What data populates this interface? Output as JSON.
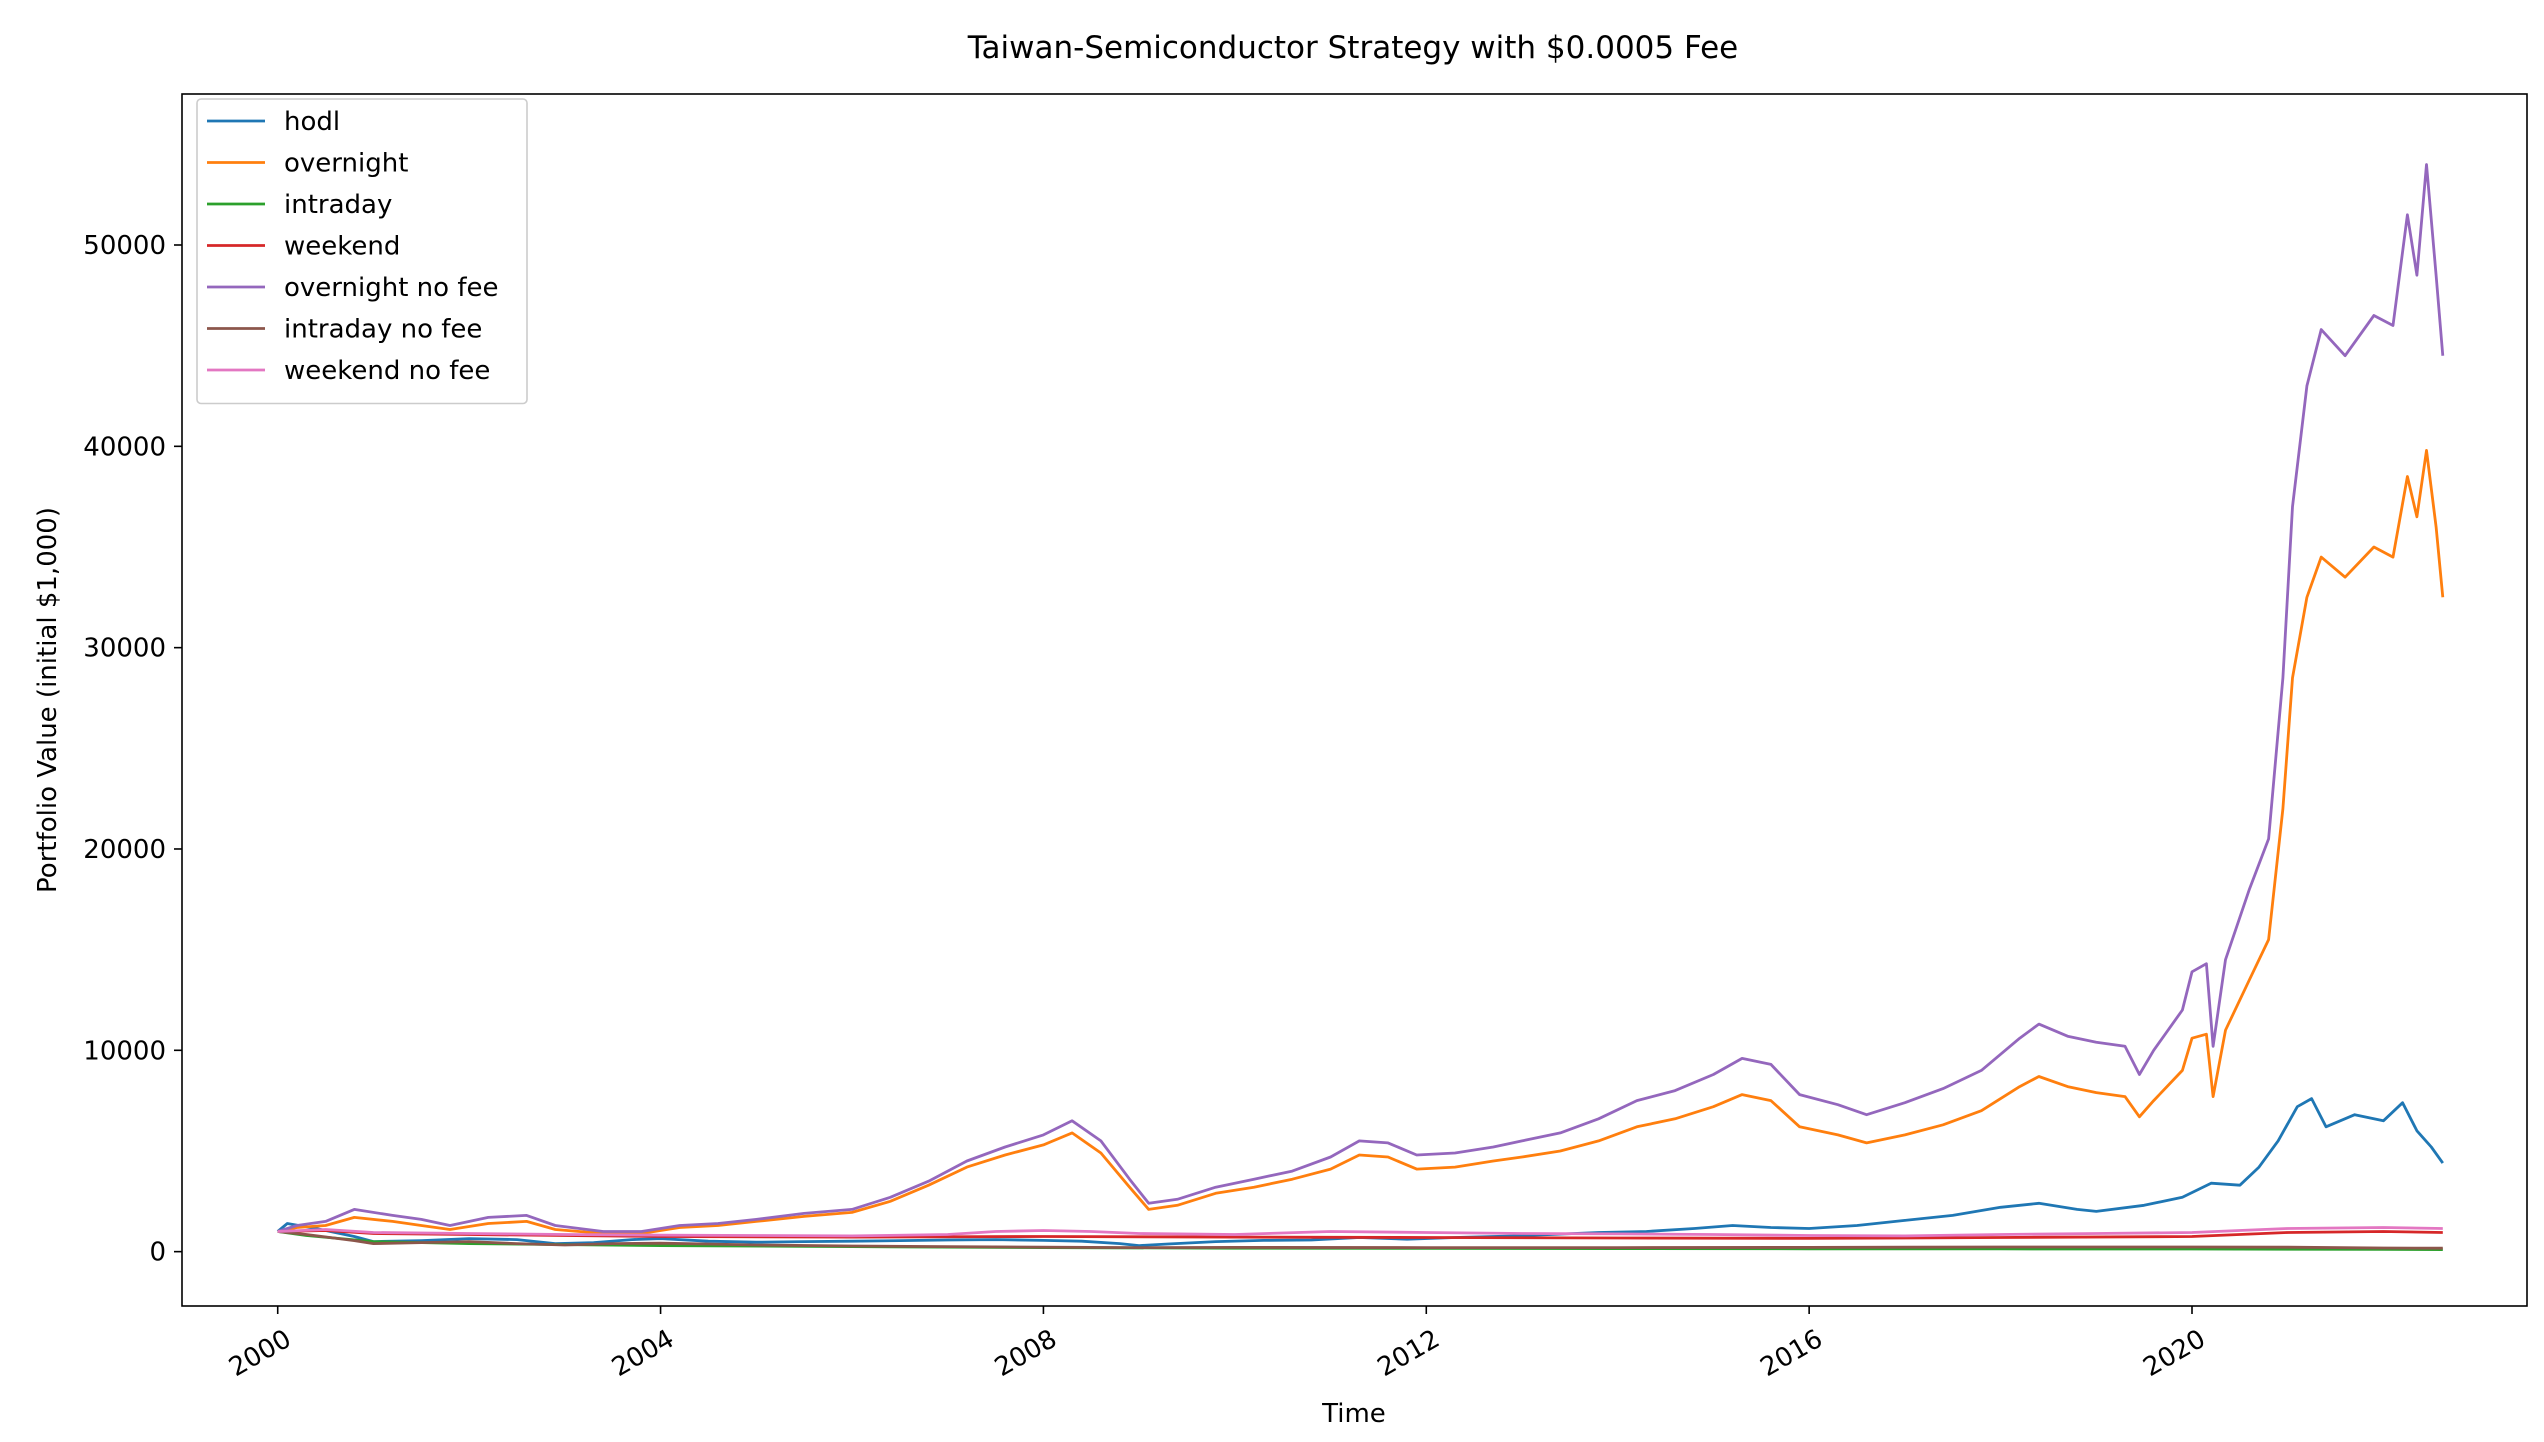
{
  "chart_data": {
    "type": "line",
    "title": "Taiwan-Semiconductor Strategy with $0.0005 Fee",
    "xlabel": "Time",
    "ylabel": "Portfolio Value (initial $1,000)",
    "xlim": [
      1999.0,
      2023.5
    ],
    "ylim": [
      -2700,
      57500
    ],
    "x_ticks": [
      2000,
      2004,
      2008,
      2012,
      2016,
      2020
    ],
    "x_tick_labels": [
      "2000",
      "2004",
      "2008",
      "2012",
      "2016",
      "2020"
    ],
    "y_ticks": [
      0,
      10000,
      20000,
      30000,
      40000,
      50000
    ],
    "y_tick_labels": [
      "0",
      "10000",
      "20000",
      "30000",
      "40000",
      "50000"
    ],
    "grid": false,
    "legend_position": "top-left",
    "series": [
      {
        "name": "hodl",
        "color": "#1f77b4",
        "points": [
          [
            2000.0,
            1000
          ],
          [
            2000.1,
            1400
          ],
          [
            2000.4,
            1150
          ],
          [
            2000.8,
            750
          ],
          [
            2001.0,
            500
          ],
          [
            2001.5,
            550
          ],
          [
            2002.0,
            650
          ],
          [
            2002.5,
            600
          ],
          [
            2002.9,
            400
          ],
          [
            2003.3,
            450
          ],
          [
            2003.7,
            600
          ],
          [
            2004.0,
            650
          ],
          [
            2004.5,
            520
          ],
          [
            2005.0,
            470
          ],
          [
            2005.5,
            500
          ],
          [
            2006.0,
            520
          ],
          [
            2006.5,
            550
          ],
          [
            2007.0,
            580
          ],
          [
            2007.5,
            600
          ],
          [
            2008.0,
            560
          ],
          [
            2008.4,
            520
          ],
          [
            2008.8,
            400
          ],
          [
            2009.0,
            300
          ],
          [
            2009.3,
            380
          ],
          [
            2009.8,
            500
          ],
          [
            2010.3,
            560
          ],
          [
            2010.8,
            580
          ],
          [
            2011.3,
            700
          ],
          [
            2011.8,
            620
          ],
          [
            2012.3,
            700
          ],
          [
            2012.8,
            760
          ],
          [
            2013.3,
            850
          ],
          [
            2013.8,
            950
          ],
          [
            2014.3,
            1000
          ],
          [
            2014.8,
            1150
          ],
          [
            2015.2,
            1300
          ],
          [
            2015.6,
            1200
          ],
          [
            2016.0,
            1150
          ],
          [
            2016.5,
            1300
          ],
          [
            2017.0,
            1550
          ],
          [
            2017.5,
            1800
          ],
          [
            2018.0,
            2200
          ],
          [
            2018.4,
            2400
          ],
          [
            2018.8,
            2100
          ],
          [
            2019.0,
            2000
          ],
          [
            2019.5,
            2300
          ],
          [
            2019.9,
            2700
          ],
          [
            2020.2,
            3400
          ],
          [
            2020.5,
            3300
          ],
          [
            2020.7,
            4200
          ],
          [
            2020.9,
            5500
          ],
          [
            2021.1,
            7200
          ],
          [
            2021.25,
            7600
          ],
          [
            2021.4,
            6200
          ],
          [
            2021.7,
            6800
          ],
          [
            2022.0,
            6500
          ],
          [
            2022.2,
            7400
          ],
          [
            2022.35,
            6000
          ],
          [
            2022.5,
            5200
          ],
          [
            2022.62,
            4400
          ]
        ]
      },
      {
        "name": "overnight",
        "color": "#ff7f0e",
        "points": [
          [
            2000.0,
            1000
          ],
          [
            2000.2,
            1200
          ],
          [
            2000.5,
            1300
          ],
          [
            2000.8,
            1700
          ],
          [
            2001.2,
            1500
          ],
          [
            2001.5,
            1300
          ],
          [
            2001.8,
            1100
          ],
          [
            2002.2,
            1400
          ],
          [
            2002.6,
            1500
          ],
          [
            2002.9,
            1100
          ],
          [
            2003.4,
            900
          ],
          [
            2003.8,
            900
          ],
          [
            2004.2,
            1200
          ],
          [
            2004.6,
            1300
          ],
          [
            2005.0,
            1500
          ],
          [
            2005.5,
            1750
          ],
          [
            2006.0,
            1950
          ],
          [
            2006.4,
            2500
          ],
          [
            2006.8,
            3300
          ],
          [
            2007.2,
            4200
          ],
          [
            2007.6,
            4800
          ],
          [
            2008.0,
            5300
          ],
          [
            2008.3,
            5900
          ],
          [
            2008.6,
            4900
          ],
          [
            2008.9,
            3200
          ],
          [
            2009.1,
            2100
          ],
          [
            2009.4,
            2300
          ],
          [
            2009.8,
            2900
          ],
          [
            2010.2,
            3200
          ],
          [
            2010.6,
            3600
          ],
          [
            2011.0,
            4100
          ],
          [
            2011.3,
            4800
          ],
          [
            2011.6,
            4700
          ],
          [
            2011.9,
            4100
          ],
          [
            2012.3,
            4200
          ],
          [
            2012.7,
            4500
          ],
          [
            2013.0,
            4700
          ],
          [
            2013.4,
            5000
          ],
          [
            2013.8,
            5500
          ],
          [
            2014.2,
            6200
          ],
          [
            2014.6,
            6600
          ],
          [
            2015.0,
            7200
          ],
          [
            2015.3,
            7800
          ],
          [
            2015.6,
            7500
          ],
          [
            2015.9,
            6200
          ],
          [
            2016.3,
            5800
          ],
          [
            2016.6,
            5400
          ],
          [
            2017.0,
            5800
          ],
          [
            2017.4,
            6300
          ],
          [
            2017.8,
            7000
          ],
          [
            2018.2,
            8200
          ],
          [
            2018.4,
            8700
          ],
          [
            2018.7,
            8200
          ],
          [
            2019.0,
            7900
          ],
          [
            2019.3,
            7700
          ],
          [
            2019.45,
            6700
          ],
          [
            2019.6,
            7500
          ],
          [
            2019.9,
            9000
          ],
          [
            2020.0,
            10600
          ],
          [
            2020.15,
            10800
          ],
          [
            2020.22,
            7700
          ],
          [
            2020.35,
            11000
          ],
          [
            2020.6,
            13500
          ],
          [
            2020.8,
            15500
          ],
          [
            2020.95,
            22000
          ],
          [
            2021.05,
            28500
          ],
          [
            2021.2,
            32500
          ],
          [
            2021.35,
            34500
          ],
          [
            2021.6,
            33500
          ],
          [
            2021.9,
            35000
          ],
          [
            2022.1,
            34500
          ],
          [
            2022.25,
            38500
          ],
          [
            2022.35,
            36500
          ],
          [
            2022.45,
            39800
          ],
          [
            2022.55,
            36000
          ],
          [
            2022.62,
            32500
          ]
        ]
      },
      {
        "name": "intraday",
        "color": "#2ca02c",
        "points": [
          [
            2000.0,
            1000
          ],
          [
            2000.3,
            800
          ],
          [
            2001.0,
            500
          ],
          [
            2002.0,
            400
          ],
          [
            2003.0,
            350
          ],
          [
            2004.0,
            300
          ],
          [
            2006.0,
            250
          ],
          [
            2008.0,
            200
          ],
          [
            2010.0,
            170
          ],
          [
            2012.0,
            160
          ],
          [
            2014.0,
            150
          ],
          [
            2016.0,
            140
          ],
          [
            2018.0,
            135
          ],
          [
            2020.0,
            130
          ],
          [
            2022.0,
            110
          ],
          [
            2022.62,
            100
          ]
        ]
      },
      {
        "name": "weekend",
        "color": "#d62728",
        "points": [
          [
            2000.0,
            1000
          ],
          [
            2000.5,
            1050
          ],
          [
            2001.0,
            900
          ],
          [
            2002.0,
            850
          ],
          [
            2003.0,
            800
          ],
          [
            2004.0,
            750
          ],
          [
            2006.0,
            720
          ],
          [
            2008.0,
            750
          ],
          [
            2010.0,
            720
          ],
          [
            2012.0,
            700
          ],
          [
            2014.0,
            680
          ],
          [
            2016.0,
            660
          ],
          [
            2018.0,
            700
          ],
          [
            2020.0,
            750
          ],
          [
            2021.0,
            950
          ],
          [
            2022.0,
            1000
          ],
          [
            2022.62,
            950
          ]
        ]
      },
      {
        "name": "overnight no fee",
        "color": "#9467bd",
        "points": [
          [
            2000.0,
            1000
          ],
          [
            2000.2,
            1300
          ],
          [
            2000.5,
            1500
          ],
          [
            2000.8,
            2100
          ],
          [
            2001.2,
            1800
          ],
          [
            2001.5,
            1600
          ],
          [
            2001.8,
            1300
          ],
          [
            2002.2,
            1700
          ],
          [
            2002.6,
            1800
          ],
          [
            2002.9,
            1300
          ],
          [
            2003.4,
            1000
          ],
          [
            2003.8,
            1000
          ],
          [
            2004.2,
            1300
          ],
          [
            2004.6,
            1400
          ],
          [
            2005.0,
            1600
          ],
          [
            2005.5,
            1900
          ],
          [
            2006.0,
            2100
          ],
          [
            2006.4,
            2700
          ],
          [
            2006.8,
            3500
          ],
          [
            2007.2,
            4500
          ],
          [
            2007.6,
            5200
          ],
          [
            2008.0,
            5800
          ],
          [
            2008.3,
            6500
          ],
          [
            2008.6,
            5500
          ],
          [
            2008.9,
            3600
          ],
          [
            2009.1,
            2400
          ],
          [
            2009.4,
            2600
          ],
          [
            2009.8,
            3200
          ],
          [
            2010.2,
            3600
          ],
          [
            2010.6,
            4000
          ],
          [
            2011.0,
            4700
          ],
          [
            2011.3,
            5500
          ],
          [
            2011.6,
            5400
          ],
          [
            2011.9,
            4800
          ],
          [
            2012.3,
            4900
          ],
          [
            2012.7,
            5200
          ],
          [
            2013.0,
            5500
          ],
          [
            2013.4,
            5900
          ],
          [
            2013.8,
            6600
          ],
          [
            2014.2,
            7500
          ],
          [
            2014.6,
            8000
          ],
          [
            2015.0,
            8800
          ],
          [
            2015.3,
            9600
          ],
          [
            2015.6,
            9300
          ],
          [
            2015.9,
            7800
          ],
          [
            2016.3,
            7300
          ],
          [
            2016.6,
            6800
          ],
          [
            2017.0,
            7400
          ],
          [
            2017.4,
            8100
          ],
          [
            2017.8,
            9000
          ],
          [
            2018.2,
            10600
          ],
          [
            2018.4,
            11300
          ],
          [
            2018.7,
            10700
          ],
          [
            2019.0,
            10400
          ],
          [
            2019.3,
            10200
          ],
          [
            2019.45,
            8800
          ],
          [
            2019.6,
            10000
          ],
          [
            2019.9,
            12000
          ],
          [
            2020.0,
            13900
          ],
          [
            2020.15,
            14300
          ],
          [
            2020.22,
            10200
          ],
          [
            2020.35,
            14500
          ],
          [
            2020.6,
            18000
          ],
          [
            2020.8,
            20500
          ],
          [
            2020.95,
            28500
          ],
          [
            2021.05,
            37000
          ],
          [
            2021.2,
            43000
          ],
          [
            2021.35,
            45800
          ],
          [
            2021.6,
            44500
          ],
          [
            2021.9,
            46500
          ],
          [
            2022.1,
            46000
          ],
          [
            2022.25,
            51500
          ],
          [
            2022.35,
            48500
          ],
          [
            2022.45,
            54000
          ],
          [
            2022.55,
            48500
          ],
          [
            2022.62,
            44500
          ]
        ]
      },
      {
        "name": "intraday no fee",
        "color": "#8c564b",
        "points": [
          [
            2000.0,
            1000
          ],
          [
            2000.3,
            850
          ],
          [
            2000.8,
            550
          ],
          [
            2001.0,
            400
          ],
          [
            2001.5,
            450
          ],
          [
            2002.0,
            500
          ],
          [
            2002.5,
            400
          ],
          [
            2003.0,
            330
          ],
          [
            2003.5,
            400
          ],
          [
            2004.0,
            420
          ],
          [
            2004.5,
            380
          ],
          [
            2005.0,
            330
          ],
          [
            2006.0,
            280
          ],
          [
            2007.0,
            250
          ],
          [
            2008.0,
            220
          ],
          [
            2009.0,
            200
          ],
          [
            2010.0,
            210
          ],
          [
            2012.0,
            200
          ],
          [
            2014.0,
            200
          ],
          [
            2016.0,
            210
          ],
          [
            2018.0,
            230
          ],
          [
            2020.0,
            230
          ],
          [
            2021.0,
            220
          ],
          [
            2022.0,
            180
          ],
          [
            2022.62,
            170
          ]
        ]
      },
      {
        "name": "weekend no fee",
        "color": "#e377c2",
        "points": [
          [
            2000.0,
            1000
          ],
          [
            2000.5,
            1100
          ],
          [
            2001.0,
            950
          ],
          [
            2002.0,
            900
          ],
          [
            2003.0,
            850
          ],
          [
            2004.0,
            820
          ],
          [
            2005.0,
            800
          ],
          [
            2006.0,
            780
          ],
          [
            2007.0,
            850
          ],
          [
            2007.5,
            1000
          ],
          [
            2008.0,
            1050
          ],
          [
            2008.5,
            1000
          ],
          [
            2009.0,
            900
          ],
          [
            2010.0,
            850
          ],
          [
            2011.0,
            1000
          ],
          [
            2012.0,
            950
          ],
          [
            2013.0,
            900
          ],
          [
            2014.0,
            880
          ],
          [
            2015.0,
            850
          ],
          [
            2016.0,
            800
          ],
          [
            2017.0,
            780
          ],
          [
            2018.0,
            850
          ],
          [
            2019.0,
            900
          ],
          [
            2020.0,
            950
          ],
          [
            2021.0,
            1150
          ],
          [
            2022.0,
            1200
          ],
          [
            2022.62,
            1150
          ]
        ]
      }
    ]
  }
}
